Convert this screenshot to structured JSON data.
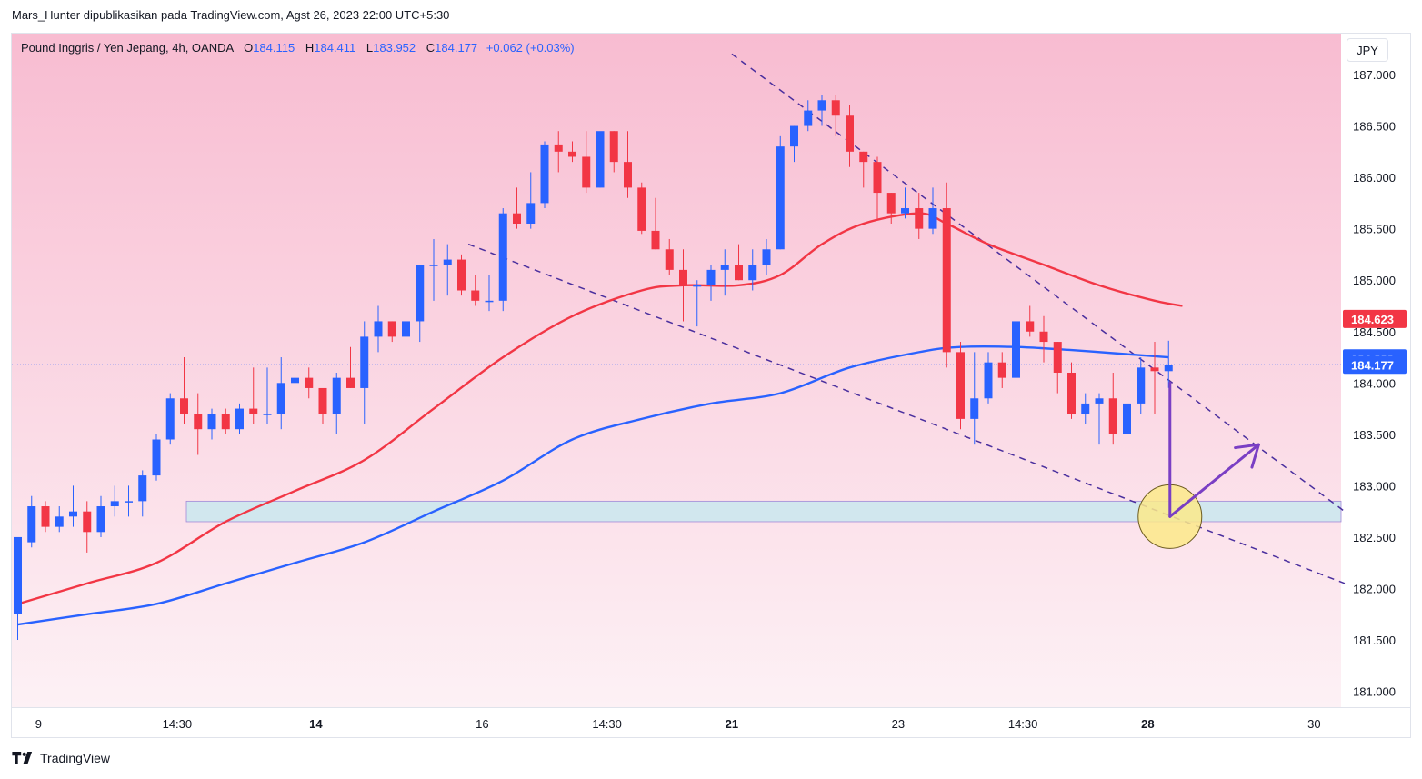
{
  "header": {
    "attribution": "Mars_Hunter dipublikasikan pada TradingView.com, Agst 26, 2023 22:00 UTC+5:30"
  },
  "legend": {
    "symbol": "Pound Inggris / Yen Jepang, 4h, OANDA",
    "open_label": "O",
    "open": "184.115",
    "high_label": "H",
    "high": "184.411",
    "low_label": "L",
    "low": "183.952",
    "close_label": "C",
    "close": "184.177",
    "change": "+0.062 (+0.03%)"
  },
  "currency_button": "JPY",
  "footer": {
    "brand": "TradingView"
  },
  "colors": {
    "up": "#2962ff",
    "down": "#f23645",
    "ma_red": "#f23645",
    "ma_blue": "#2962ff",
    "bg_top": "#f8bcd1",
    "bg_bottom": "#fdf1f5",
    "zone": "#cde8ef",
    "zone_border": "#9b7fd6",
    "trendline": "#4a2f9e",
    "arrow": "#7a3fc4",
    "target_circle": "#fbe98a"
  },
  "chart_data": {
    "type": "candlestick",
    "ylim": [
      180.85,
      187.4
    ],
    "y_ticks": [
      "187.000",
      "186.500",
      "186.000",
      "185.500",
      "185.000",
      "184.500",
      "184.000",
      "183.500",
      "183.000",
      "182.500",
      "182.000",
      "181.500",
      "181.000"
    ],
    "x_ticks": [
      {
        "label": "9",
        "index": 1.5,
        "bold": false
      },
      {
        "label": "14:30",
        "index": 11.5,
        "bold": false
      },
      {
        "label": "14",
        "index": 21.5,
        "bold": true
      },
      {
        "label": "16",
        "index": 33.5,
        "bold": false
      },
      {
        "label": "14:30",
        "index": 42.5,
        "bold": false
      },
      {
        "label": "21",
        "index": 51.5,
        "bold": true
      },
      {
        "label": "23",
        "index": 63.5,
        "bold": false
      },
      {
        "label": "14:30",
        "index": 72.5,
        "bold": false
      },
      {
        "label": "28",
        "index": 81.5,
        "bold": true
      },
      {
        "label": "30",
        "index": 93.5,
        "bold": false
      }
    ],
    "candles": [
      [
        181.75,
        182.5,
        181.5,
        182.5
      ],
      [
        182.45,
        182.9,
        182.4,
        182.8
      ],
      [
        182.8,
        182.85,
        182.55,
        182.6
      ],
      [
        182.6,
        182.8,
        182.55,
        182.7
      ],
      [
        182.7,
        183.0,
        182.6,
        182.75
      ],
      [
        182.75,
        182.85,
        182.35,
        182.55
      ],
      [
        182.55,
        182.9,
        182.5,
        182.8
      ],
      [
        182.8,
        183.0,
        182.7,
        182.85
      ],
      [
        182.85,
        183.0,
        182.7,
        182.85
      ],
      [
        182.85,
        183.15,
        182.7,
        183.1
      ],
      [
        183.1,
        183.5,
        183.05,
        183.45
      ],
      [
        183.45,
        183.9,
        183.4,
        183.85
      ],
      [
        183.85,
        184.25,
        183.6,
        183.7
      ],
      [
        183.7,
        183.9,
        183.3,
        183.55
      ],
      [
        183.55,
        183.75,
        183.45,
        183.7
      ],
      [
        183.7,
        183.75,
        183.5,
        183.55
      ],
      [
        183.55,
        183.8,
        183.5,
        183.75
      ],
      [
        183.75,
        184.15,
        183.6,
        183.7
      ],
      [
        183.7,
        184.15,
        183.6,
        183.7
      ],
      [
        183.7,
        184.25,
        183.55,
        184.0
      ],
      [
        184.0,
        184.1,
        183.85,
        184.05
      ],
      [
        184.05,
        184.15,
        183.85,
        183.95
      ],
      [
        183.95,
        183.95,
        183.6,
        183.7
      ],
      [
        183.7,
        184.1,
        183.5,
        184.05
      ],
      [
        184.05,
        184.35,
        183.95,
        183.95
      ],
      [
        183.95,
        184.6,
        183.6,
        184.45
      ],
      [
        184.45,
        184.75,
        184.3,
        184.6
      ],
      [
        184.6,
        184.6,
        184.4,
        184.45
      ],
      [
        184.45,
        184.55,
        184.3,
        184.6
      ],
      [
        184.6,
        185.15,
        184.4,
        185.15
      ],
      [
        185.15,
        185.4,
        184.8,
        185.15
      ],
      [
        185.15,
        185.35,
        184.85,
        185.2
      ],
      [
        185.2,
        185.25,
        184.85,
        184.9
      ],
      [
        184.9,
        185.05,
        184.75,
        184.8
      ],
      [
        184.8,
        185.05,
        184.7,
        184.8
      ],
      [
        184.8,
        185.7,
        184.7,
        185.65
      ],
      [
        185.65,
        185.9,
        185.5,
        185.55
      ],
      [
        185.55,
        186.05,
        185.5,
        185.75
      ],
      [
        185.75,
        186.35,
        185.7,
        186.32
      ],
      [
        186.32,
        186.45,
        186.05,
        186.25
      ],
      [
        186.25,
        186.35,
        186.15,
        186.2
      ],
      [
        186.2,
        186.45,
        185.85,
        185.9
      ],
      [
        185.9,
        186.4,
        185.9,
        186.45
      ],
      [
        186.45,
        186.45,
        186.05,
        186.15
      ],
      [
        186.15,
        186.45,
        185.8,
        185.9
      ],
      [
        185.9,
        185.95,
        185.45,
        185.48
      ],
      [
        185.48,
        185.8,
        185.3,
        185.3
      ],
      [
        185.3,
        185.4,
        185.05,
        185.1
      ],
      [
        185.1,
        185.3,
        184.6,
        184.95
      ],
      [
        184.95,
        185.0,
        184.55,
        184.95
      ],
      [
        184.95,
        185.15,
        184.8,
        185.1
      ],
      [
        185.1,
        185.3,
        184.85,
        185.15
      ],
      [
        185.15,
        185.35,
        185.0,
        185.0
      ],
      [
        185.0,
        185.3,
        184.9,
        185.15
      ],
      [
        185.15,
        185.4,
        185.05,
        185.3
      ],
      [
        185.3,
        186.4,
        185.3,
        186.3
      ],
      [
        186.3,
        186.5,
        186.15,
        186.5
      ],
      [
        186.5,
        186.75,
        186.45,
        186.65
      ],
      [
        186.65,
        186.8,
        186.5,
        186.75
      ],
      [
        186.75,
        186.8,
        186.4,
        186.6
      ],
      [
        186.6,
        186.7,
        186.1,
        186.25
      ],
      [
        186.25,
        186.25,
        185.9,
        186.15
      ],
      [
        186.15,
        186.2,
        185.6,
        185.85
      ],
      [
        185.85,
        185.85,
        185.55,
        185.65
      ],
      [
        185.65,
        185.9,
        185.6,
        185.7
      ],
      [
        185.7,
        185.85,
        185.4,
        185.5
      ],
      [
        185.5,
        185.9,
        185.45,
        185.7
      ],
      [
        185.7,
        185.95,
        184.15,
        184.3
      ],
      [
        184.3,
        184.4,
        183.55,
        183.65
      ],
      [
        183.65,
        184.3,
        183.4,
        183.85
      ],
      [
        183.85,
        184.3,
        183.8,
        184.2
      ],
      [
        184.2,
        184.3,
        183.95,
        184.05
      ],
      [
        184.05,
        184.7,
        183.95,
        184.6
      ],
      [
        184.6,
        184.75,
        184.45,
        184.5
      ],
      [
        184.5,
        184.65,
        184.2,
        184.4
      ],
      [
        184.4,
        184.4,
        183.9,
        184.1
      ],
      [
        184.1,
        184.2,
        183.65,
        183.7
      ],
      [
        183.7,
        183.9,
        183.6,
        183.8
      ],
      [
        183.8,
        183.9,
        183.4,
        183.85
      ],
      [
        183.85,
        184.1,
        183.4,
        183.5
      ],
      [
        183.5,
        183.9,
        183.45,
        183.8
      ],
      [
        183.8,
        184.25,
        183.7,
        184.15
      ],
      [
        184.15,
        184.4,
        183.7,
        184.115
      ],
      [
        184.115,
        184.411,
        183.952,
        184.177
      ]
    ],
    "series": [
      {
        "name": "",
        "color": "#f23645",
        "points": [
          [
            0,
            181.85
          ],
          [
            5,
            182.05
          ],
          [
            10,
            182.25
          ],
          [
            15,
            182.65
          ],
          [
            20,
            182.95
          ],
          [
            25,
            183.25
          ],
          [
            30,
            183.75
          ],
          [
            35,
            184.25
          ],
          [
            40,
            184.65
          ],
          [
            45,
            184.9
          ],
          [
            48,
            184.95
          ],
          [
            52,
            184.95
          ],
          [
            55,
            185.05
          ],
          [
            58,
            185.35
          ],
          [
            61,
            185.55
          ],
          [
            65,
            185.65
          ],
          [
            67,
            185.55
          ],
          [
            70,
            185.35
          ],
          [
            74,
            185.15
          ],
          [
            78,
            184.95
          ],
          [
            82,
            184.8
          ],
          [
            84,
            184.75
          ]
        ]
      },
      {
        "name": "",
        "color": "#2962ff",
        "points": [
          [
            0,
            181.65
          ],
          [
            5,
            181.75
          ],
          [
            10,
            181.85
          ],
          [
            15,
            182.05
          ],
          [
            20,
            182.25
          ],
          [
            25,
            182.45
          ],
          [
            30,
            182.75
          ],
          [
            35,
            183.05
          ],
          [
            40,
            183.45
          ],
          [
            45,
            183.65
          ],
          [
            50,
            183.8
          ],
          [
            55,
            183.9
          ],
          [
            60,
            184.15
          ],
          [
            65,
            184.3
          ],
          [
            68,
            184.35
          ],
          [
            72,
            184.35
          ],
          [
            76,
            184.32
          ],
          [
            80,
            184.28
          ],
          [
            83,
            184.25
          ]
        ]
      }
    ],
    "price_labels": [
      {
        "value": 184.623,
        "text": "184.623",
        "color": "#f23645"
      },
      {
        "value": 184.239,
        "text": "184.239",
        "color": "#2962ff"
      },
      {
        "value": 184.177,
        "text": "184.177",
        "color": "#2962ff"
      }
    ],
    "last_price": 184.177,
    "support_zone": {
      "y_low": 182.65,
      "y_high": 182.85,
      "x_start": 12,
      "x_end": 97
    },
    "trendlines": [
      {
        "x1": 51.5,
        "y1": 187.2,
        "x2": 95.7,
        "y2": 182.75
      },
      {
        "x1": 32.5,
        "y1": 185.35,
        "x2": 95.7,
        "y2": 182.05
      }
    ],
    "target_circle": {
      "x": 83.1,
      "y": 182.7
    },
    "arrow_down": {
      "x": 83.1,
      "y_from": 184.0,
      "y_to": 182.7
    },
    "arrow_up": {
      "x_from": 83.1,
      "y_from": 182.7,
      "x_to": 89.5,
      "y_to": 183.4
    }
  }
}
